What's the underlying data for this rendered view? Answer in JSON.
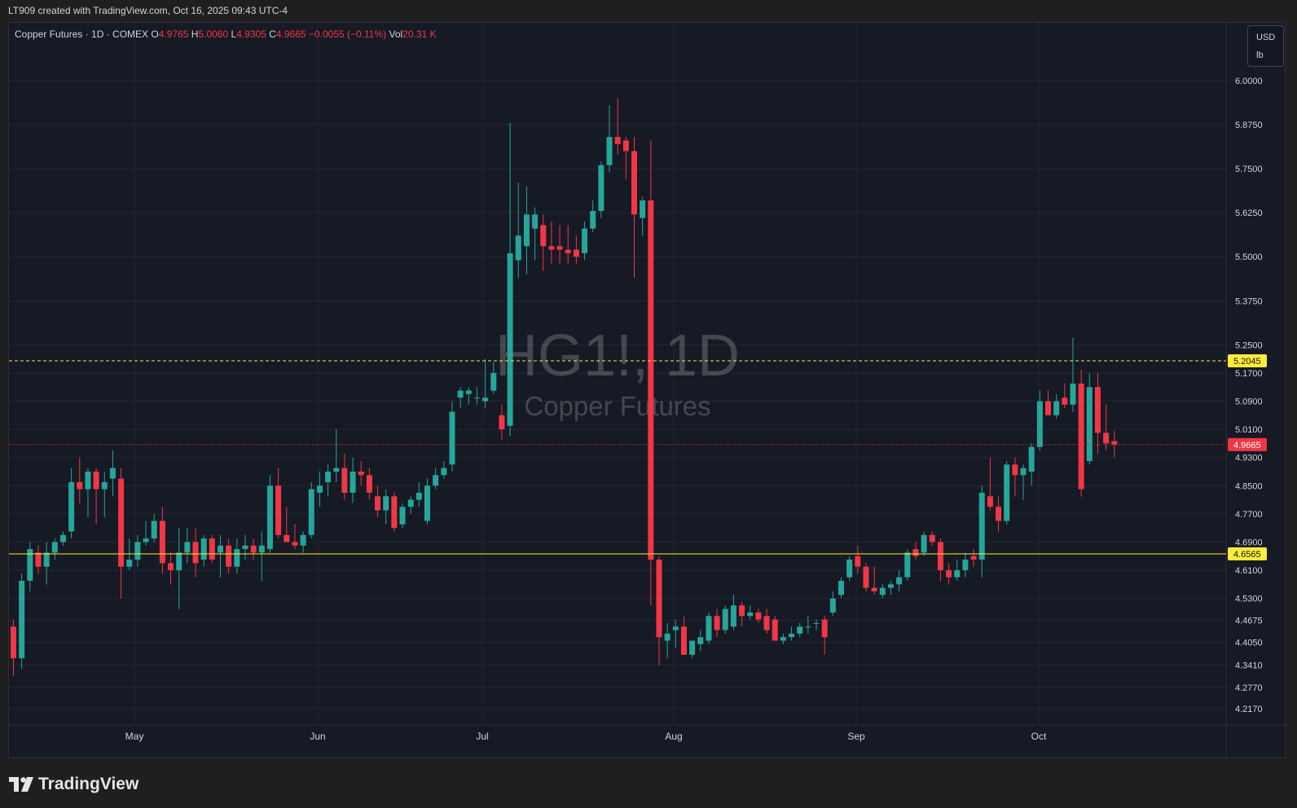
{
  "header": {
    "caption": "LT909 created with TradingView.com, Oct 16, 2025 09:43 UTC-4"
  },
  "legend": {
    "symbol": "Copper Futures · 1D · COMEX",
    "o_label": "O",
    "o_value": "4.9765",
    "h_label": "H",
    "h_value": "5.0060",
    "l_label": "L",
    "l_value": "4.9305",
    "c_label": "C",
    "c_value": "4.9665",
    "change": "−0.0055 (−0.11%)",
    "vol_label": "Vol",
    "vol_value": "20.31 K"
  },
  "units": {
    "currency": "USD",
    "unit": "lb"
  },
  "footer": {
    "brand": "TradingView"
  },
  "colors": {
    "up": "#26a69a",
    "down": "#f23645",
    "background": "#161a25",
    "grid": "#222632",
    "hline_yellow": "#ffeb3b"
  },
  "chart_data": {
    "type": "candlestick",
    "watermark_symbol": "HG1!, 1D",
    "watermark_name": "Copper Futures",
    "y_axis": {
      "ticks": [
        "6.0000",
        "5.8750",
        "5.7500",
        "5.6250",
        "5.5000",
        "5.3750",
        "5.2500",
        "5.1700",
        "5.0900",
        "5.0100",
        "4.9300",
        "4.8500",
        "4.7700",
        "4.6900",
        "4.6100",
        "4.5300",
        "4.4675",
        "4.4050",
        "4.3410",
        "4.2770",
        "4.2170"
      ]
    },
    "x_axis": {
      "labels": [
        "May",
        "Jun",
        "Jul",
        "Aug",
        "Sep",
        "Oct"
      ]
    },
    "price_labels": [
      {
        "value": "5.2045",
        "style": "dashed-yellow"
      },
      {
        "value": "4.9665",
        "style": "last-price"
      },
      {
        "value": "4.6565",
        "style": "solid-yellow"
      }
    ],
    "last_price": 4.9665,
    "candles": [
      {
        "o": 4.45,
        "h": 4.47,
        "l": 4.31,
        "c": 4.36
      },
      {
        "o": 4.36,
        "h": 4.6,
        "l": 4.33,
        "c": 4.58
      },
      {
        "o": 4.58,
        "h": 4.69,
        "l": 4.55,
        "c": 4.67
      },
      {
        "o": 4.66,
        "h": 4.68,
        "l": 4.6,
        "c": 4.62
      },
      {
        "o": 4.62,
        "h": 4.69,
        "l": 4.57,
        "c": 4.66
      },
      {
        "o": 4.66,
        "h": 4.7,
        "l": 4.64,
        "c": 4.69
      },
      {
        "o": 4.69,
        "h": 4.72,
        "l": 4.68,
        "c": 4.71
      },
      {
        "o": 4.72,
        "h": 4.9,
        "l": 4.7,
        "c": 4.86
      },
      {
        "o": 4.86,
        "h": 4.93,
        "l": 4.8,
        "c": 4.84
      },
      {
        "o": 4.84,
        "h": 4.9,
        "l": 4.76,
        "c": 4.89
      },
      {
        "o": 4.89,
        "h": 4.9,
        "l": 4.74,
        "c": 4.84
      },
      {
        "o": 4.84,
        "h": 4.89,
        "l": 4.76,
        "c": 4.86
      },
      {
        "o": 4.87,
        "h": 4.95,
        "l": 4.82,
        "c": 4.9
      },
      {
        "o": 4.87,
        "h": 4.9,
        "l": 4.53,
        "c": 4.62
      },
      {
        "o": 4.62,
        "h": 4.7,
        "l": 4.61,
        "c": 4.64
      },
      {
        "o": 4.64,
        "h": 4.71,
        "l": 4.62,
        "c": 4.69
      },
      {
        "o": 4.69,
        "h": 4.75,
        "l": 4.68,
        "c": 4.7
      },
      {
        "o": 4.7,
        "h": 4.77,
        "l": 4.69,
        "c": 4.75
      },
      {
        "o": 4.75,
        "h": 4.79,
        "l": 4.6,
        "c": 4.63
      },
      {
        "o": 4.63,
        "h": 4.66,
        "l": 4.57,
        "c": 4.61
      },
      {
        "o": 4.61,
        "h": 4.73,
        "l": 4.5,
        "c": 4.66
      },
      {
        "o": 4.66,
        "h": 4.73,
        "l": 4.63,
        "c": 4.69
      },
      {
        "o": 4.69,
        "h": 4.73,
        "l": 4.59,
        "c": 4.63
      },
      {
        "o": 4.64,
        "h": 4.71,
        "l": 4.62,
        "c": 4.7
      },
      {
        "o": 4.7,
        "h": 4.71,
        "l": 4.63,
        "c": 4.64
      },
      {
        "o": 4.66,
        "h": 4.71,
        "l": 4.59,
        "c": 4.68
      },
      {
        "o": 4.68,
        "h": 4.7,
        "l": 4.6,
        "c": 4.62
      },
      {
        "o": 4.62,
        "h": 4.7,
        "l": 4.6,
        "c": 4.67
      },
      {
        "o": 4.67,
        "h": 4.71,
        "l": 4.64,
        "c": 4.68
      },
      {
        "o": 4.68,
        "h": 4.7,
        "l": 4.64,
        "c": 4.66
      },
      {
        "o": 4.66,
        "h": 4.72,
        "l": 4.58,
        "c": 4.68
      },
      {
        "o": 4.67,
        "h": 4.88,
        "l": 4.66,
        "c": 4.85
      },
      {
        "o": 4.85,
        "h": 4.9,
        "l": 4.7,
        "c": 4.71
      },
      {
        "o": 4.71,
        "h": 4.79,
        "l": 4.69,
        "c": 4.69
      },
      {
        "o": 4.69,
        "h": 4.74,
        "l": 4.67,
        "c": 4.68
      },
      {
        "o": 4.68,
        "h": 4.72,
        "l": 4.66,
        "c": 4.71
      },
      {
        "o": 4.71,
        "h": 4.86,
        "l": 4.7,
        "c": 4.84
      },
      {
        "o": 4.83,
        "h": 4.89,
        "l": 4.79,
        "c": 4.85
      },
      {
        "o": 4.86,
        "h": 4.91,
        "l": 4.82,
        "c": 4.89
      },
      {
        "o": 4.89,
        "h": 5.01,
        "l": 4.86,
        "c": 4.9
      },
      {
        "o": 4.9,
        "h": 4.94,
        "l": 4.81,
        "c": 4.83
      },
      {
        "o": 4.83,
        "h": 4.93,
        "l": 4.8,
        "c": 4.89
      },
      {
        "o": 4.89,
        "h": 4.92,
        "l": 4.85,
        "c": 4.88
      },
      {
        "o": 4.88,
        "h": 4.9,
        "l": 4.81,
        "c": 4.83
      },
      {
        "o": 4.82,
        "h": 4.85,
        "l": 4.76,
        "c": 4.78
      },
      {
        "o": 4.78,
        "h": 4.84,
        "l": 4.74,
        "c": 4.82
      },
      {
        "o": 4.82,
        "h": 4.83,
        "l": 4.72,
        "c": 4.73
      },
      {
        "o": 4.74,
        "h": 4.8,
        "l": 4.73,
        "c": 4.79
      },
      {
        "o": 4.79,
        "h": 4.82,
        "l": 4.77,
        "c": 4.81
      },
      {
        "o": 4.81,
        "h": 4.86,
        "l": 4.79,
        "c": 4.83
      },
      {
        "o": 4.75,
        "h": 4.87,
        "l": 4.74,
        "c": 4.85
      },
      {
        "o": 4.85,
        "h": 4.9,
        "l": 4.84,
        "c": 4.88
      },
      {
        "o": 4.88,
        "h": 4.92,
        "l": 4.87,
        "c": 4.9
      },
      {
        "o": 4.91,
        "h": 5.09,
        "l": 4.89,
        "c": 5.06
      },
      {
        "o": 5.1,
        "h": 5.13,
        "l": 5.07,
        "c": 5.12
      },
      {
        "o": 5.11,
        "h": 5.13,
        "l": 5.08,
        "c": 5.12
      },
      {
        "o": 5.1,
        "h": 5.13,
        "l": 5.08,
        "c": 5.1
      },
      {
        "o": 5.09,
        "h": 5.21,
        "l": 5.07,
        "c": 5.1
      },
      {
        "o": 5.12,
        "h": 5.2,
        "l": 5.11,
        "c": 5.17
      },
      {
        "o": 5.05,
        "h": 5.08,
        "l": 4.98,
        "c": 5.01
      },
      {
        "o": 5.02,
        "h": 5.88,
        "l": 4.99,
        "c": 5.51
      },
      {
        "o": 5.49,
        "h": 5.71,
        "l": 5.44,
        "c": 5.56
      },
      {
        "o": 5.53,
        "h": 5.7,
        "l": 5.45,
        "c": 5.62
      },
      {
        "o": 5.58,
        "h": 5.64,
        "l": 5.49,
        "c": 5.62
      },
      {
        "o": 5.59,
        "h": 5.62,
        "l": 5.46,
        "c": 5.53
      },
      {
        "o": 5.53,
        "h": 5.6,
        "l": 5.48,
        "c": 5.52
      },
      {
        "o": 5.53,
        "h": 5.59,
        "l": 5.48,
        "c": 5.52
      },
      {
        "o": 5.52,
        "h": 5.59,
        "l": 5.48,
        "c": 5.51
      },
      {
        "o": 5.52,
        "h": 5.56,
        "l": 5.48,
        "c": 5.5
      },
      {
        "o": 5.51,
        "h": 5.6,
        "l": 5.49,
        "c": 5.58
      },
      {
        "o": 5.58,
        "h": 5.66,
        "l": 5.57,
        "c": 5.63
      },
      {
        "o": 5.63,
        "h": 5.77,
        "l": 5.61,
        "c": 5.76
      },
      {
        "o": 5.76,
        "h": 5.93,
        "l": 5.74,
        "c": 5.84
      },
      {
        "o": 5.84,
        "h": 5.95,
        "l": 5.79,
        "c": 5.82
      },
      {
        "o": 5.83,
        "h": 5.84,
        "l": 5.72,
        "c": 5.8
      },
      {
        "o": 5.8,
        "h": 5.84,
        "l": 5.44,
        "c": 5.62
      },
      {
        "o": 5.61,
        "h": 5.67,
        "l": 5.56,
        "c": 5.66
      },
      {
        "o": 5.66,
        "h": 5.83,
        "l": 4.51,
        "c": 4.64
      },
      {
        "o": 4.64,
        "h": 4.65,
        "l": 4.34,
        "c": 4.42
      },
      {
        "o": 4.41,
        "h": 4.46,
        "l": 4.36,
        "c": 4.43
      },
      {
        "o": 4.44,
        "h": 4.47,
        "l": 4.39,
        "c": 4.45
      },
      {
        "o": 4.45,
        "h": 4.48,
        "l": 4.37,
        "c": 4.37
      },
      {
        "o": 4.37,
        "h": 4.41,
        "l": 4.36,
        "c": 4.41
      },
      {
        "o": 4.4,
        "h": 4.44,
        "l": 4.38,
        "c": 4.42
      },
      {
        "o": 4.41,
        "h": 4.49,
        "l": 4.4,
        "c": 4.48
      },
      {
        "o": 4.48,
        "h": 4.5,
        "l": 4.42,
        "c": 4.44
      },
      {
        "o": 4.44,
        "h": 4.51,
        "l": 4.43,
        "c": 4.5
      },
      {
        "o": 4.45,
        "h": 4.54,
        "l": 4.44,
        "c": 4.51
      },
      {
        "o": 4.51,
        "h": 4.52,
        "l": 4.45,
        "c": 4.48
      },
      {
        "o": 4.48,
        "h": 4.51,
        "l": 4.47,
        "c": 4.49
      },
      {
        "o": 4.49,
        "h": 4.5,
        "l": 4.46,
        "c": 4.47
      },
      {
        "o": 4.48,
        "h": 4.5,
        "l": 4.43,
        "c": 4.44
      },
      {
        "o": 4.47,
        "h": 4.48,
        "l": 4.41,
        "c": 4.41
      },
      {
        "o": 4.41,
        "h": 4.43,
        "l": 4.4,
        "c": 4.42
      },
      {
        "o": 4.42,
        "h": 4.45,
        "l": 4.41,
        "c": 4.43
      },
      {
        "o": 4.43,
        "h": 4.46,
        "l": 4.42,
        "c": 4.45
      },
      {
        "o": 4.45,
        "h": 4.48,
        "l": 4.43,
        "c": 4.45
      },
      {
        "o": 4.46,
        "h": 4.47,
        "l": 4.44,
        "c": 4.46
      },
      {
        "o": 4.47,
        "h": 4.48,
        "l": 4.37,
        "c": 4.42
      },
      {
        "o": 4.49,
        "h": 4.55,
        "l": 4.48,
        "c": 4.53
      },
      {
        "o": 4.54,
        "h": 4.59,
        "l": 4.53,
        "c": 4.58
      },
      {
        "o": 4.59,
        "h": 4.65,
        "l": 4.58,
        "c": 4.64
      },
      {
        "o": 4.65,
        "h": 4.68,
        "l": 4.6,
        "c": 4.62
      },
      {
        "o": 4.62,
        "h": 4.63,
        "l": 4.55,
        "c": 4.56
      },
      {
        "o": 4.56,
        "h": 4.62,
        "l": 4.54,
        "c": 4.55
      },
      {
        "o": 4.54,
        "h": 4.57,
        "l": 4.53,
        "c": 4.56
      },
      {
        "o": 4.56,
        "h": 4.58,
        "l": 4.54,
        "c": 4.57
      },
      {
        "o": 4.57,
        "h": 4.61,
        "l": 4.55,
        "c": 4.59
      },
      {
        "o": 4.59,
        "h": 4.67,
        "l": 4.58,
        "c": 4.66
      },
      {
        "o": 4.67,
        "h": 4.69,
        "l": 4.64,
        "c": 4.65
      },
      {
        "o": 4.66,
        "h": 4.72,
        "l": 4.65,
        "c": 4.71
      },
      {
        "o": 4.71,
        "h": 4.72,
        "l": 4.68,
        "c": 4.69
      },
      {
        "o": 4.69,
        "h": 4.7,
        "l": 4.58,
        "c": 4.61
      },
      {
        "o": 4.61,
        "h": 4.63,
        "l": 4.57,
        "c": 4.59
      },
      {
        "o": 4.59,
        "h": 4.64,
        "l": 4.58,
        "c": 4.61
      },
      {
        "o": 4.61,
        "h": 4.66,
        "l": 4.59,
        "c": 4.64
      },
      {
        "o": 4.65,
        "h": 4.67,
        "l": 4.62,
        "c": 4.64
      },
      {
        "o": 4.64,
        "h": 4.85,
        "l": 4.59,
        "c": 4.83
      },
      {
        "o": 4.82,
        "h": 4.93,
        "l": 4.78,
        "c": 4.79
      },
      {
        "o": 4.79,
        "h": 4.82,
        "l": 4.72,
        "c": 4.75
      },
      {
        "o": 4.75,
        "h": 4.92,
        "l": 4.74,
        "c": 4.91
      },
      {
        "o": 4.91,
        "h": 4.93,
        "l": 4.82,
        "c": 4.88
      },
      {
        "o": 4.88,
        "h": 4.91,
        "l": 4.81,
        "c": 4.9
      },
      {
        "o": 4.89,
        "h": 4.97,
        "l": 4.85,
        "c": 4.96
      },
      {
        "o": 4.96,
        "h": 5.12,
        "l": 4.95,
        "c": 5.09
      },
      {
        "o": 5.09,
        "h": 5.12,
        "l": 5.05,
        "c": 5.05
      },
      {
        "o": 5.05,
        "h": 5.11,
        "l": 5.04,
        "c": 5.09
      },
      {
        "o": 5.1,
        "h": 5.14,
        "l": 5.07,
        "c": 5.08
      },
      {
        "o": 5.08,
        "h": 5.27,
        "l": 5.06,
        "c": 5.14
      },
      {
        "o": 5.14,
        "h": 5.18,
        "l": 4.82,
        "c": 4.84
      },
      {
        "o": 4.92,
        "h": 5.17,
        "l": 4.91,
        "c": 5.13
      },
      {
        "o": 5.13,
        "h": 5.17,
        "l": 4.94,
        "c": 5.0
      },
      {
        "o": 5.0,
        "h": 5.08,
        "l": 4.95,
        "c": 4.97
      },
      {
        "o": 4.9765,
        "h": 5.006,
        "l": 4.9305,
        "c": 4.9665
      }
    ]
  }
}
